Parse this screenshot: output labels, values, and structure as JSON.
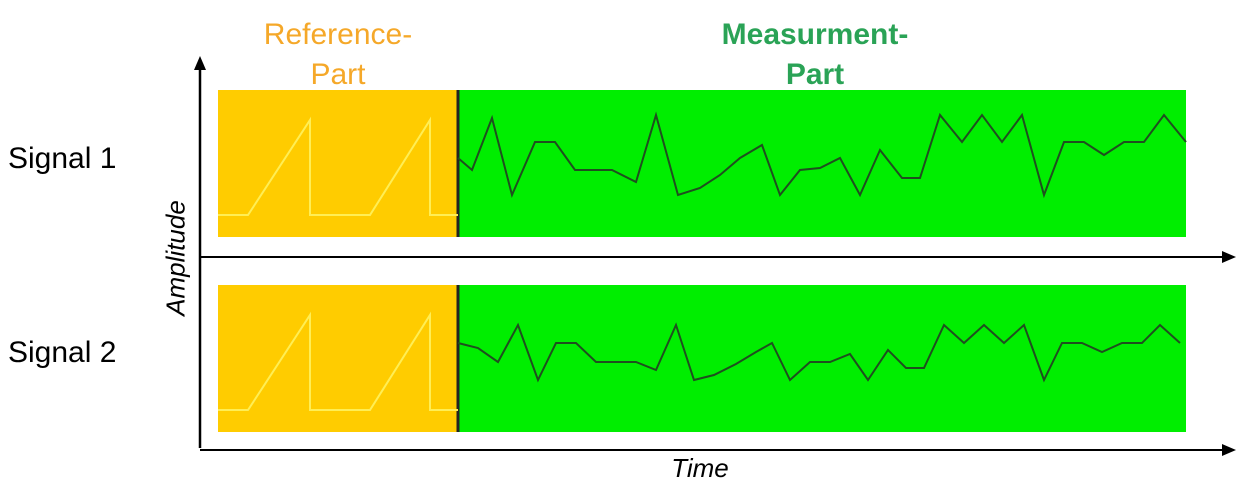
{
  "labels": {
    "reference_line1": "Reference-",
    "reference_line2": "Part",
    "measurement_line1": "Measurment-",
    "measurement_line2": "Part",
    "signal1": "Signal 1",
    "signal2": "Signal 2",
    "y_axis": "Amplitude",
    "x_axis": "Time"
  },
  "colors": {
    "reference_fill": "#FFCC00",
    "reference_signal": "#FFEE55",
    "measurement_fill": "#00EE00",
    "measurement_signal": "#1F4F1F",
    "reference_label": "#F5A829",
    "measurement_label": "#2AA356",
    "axis": "#000000"
  }
}
